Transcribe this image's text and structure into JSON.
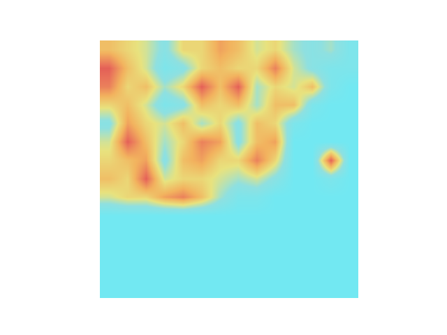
{
  "chart_data": {
    "type": "heatmap",
    "tick_labels": false,
    "grid": false,
    "zlim": [
      0,
      1
    ],
    "z": [
      [
        0.6,
        0.5,
        0.4,
        0.2,
        0.5,
        0.5,
        0.7,
        0.6,
        0.4,
        0.5,
        0.3,
        0.2,
        0.3,
        0.1
      ],
      [
        0.9,
        0.6,
        0.4,
        0.1,
        0.2,
        0.5,
        0.6,
        0.5,
        0.5,
        0.8,
        0.4,
        0.2,
        0.1,
        0.1
      ],
      [
        0.8,
        0.5,
        0.6,
        0.3,
        0.5,
        0.9,
        0.6,
        0.9,
        0.3,
        0.5,
        0.4,
        0.6,
        0.1,
        0.0
      ],
      [
        0.5,
        0.6,
        0.4,
        0.1,
        0.2,
        0.6,
        0.5,
        0.6,
        0.3,
        0.6,
        0.6,
        0.1,
        0.0,
        0.0
      ],
      [
        0.2,
        0.7,
        0.5,
        0.4,
        0.6,
        0.3,
        0.5,
        0.2,
        0.6,
        0.5,
        0.1,
        0.0,
        0.0,
        0.0
      ],
      [
        0.4,
        0.9,
        0.6,
        0.3,
        0.5,
        0.8,
        0.7,
        0.2,
        0.6,
        0.7,
        0.0,
        0.0,
        0.0,
        0.0
      ],
      [
        0.5,
        0.6,
        0.7,
        0.2,
        0.6,
        0.7,
        0.5,
        0.5,
        0.8,
        0.5,
        0.0,
        0.0,
        0.9,
        0.0
      ],
      [
        0.6,
        0.5,
        0.9,
        0.4,
        0.5,
        0.5,
        0.4,
        0.3,
        0.4,
        0.2,
        0.0,
        0.0,
        0.1,
        0.0
      ],
      [
        0.4,
        0.5,
        0.5,
        0.7,
        0.8,
        0.6,
        0.3,
        0.1,
        0.1,
        0.0,
        0.0,
        0.0,
        0.0,
        0.0
      ],
      [
        0.0,
        0.0,
        0.0,
        0.0,
        0.0,
        0.0,
        0.0,
        0.0,
        0.0,
        0.0,
        0.0,
        0.0,
        0.0,
        0.0
      ],
      [
        0.0,
        0.0,
        0.0,
        0.0,
        0.0,
        0.0,
        0.0,
        0.0,
        0.0,
        0.0,
        0.0,
        0.0,
        0.0,
        0.0
      ],
      [
        0.0,
        0.0,
        0.0,
        0.0,
        0.0,
        0.0,
        0.0,
        0.0,
        0.0,
        0.0,
        0.0,
        0.0,
        0.0,
        0.0
      ],
      [
        0.0,
        0.0,
        0.0,
        0.0,
        0.0,
        0.0,
        0.0,
        0.0,
        0.0,
        0.0,
        0.0,
        0.0,
        0.0,
        0.0
      ],
      [
        0.0,
        0.0,
        0.0,
        0.0,
        0.0,
        0.0,
        0.0,
        0.0,
        0.0,
        0.0,
        0.0,
        0.0,
        0.0,
        0.0
      ]
    ]
  }
}
